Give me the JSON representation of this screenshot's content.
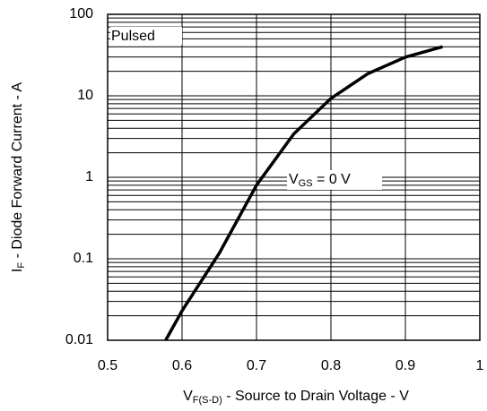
{
  "chart_data": {
    "type": "line",
    "ylabel": [
      "I",
      "F",
      " - Diode Forward Current - A"
    ],
    "xlabel": [
      "V",
      "F(S-D)",
      " - Source to Drain Voltage - V"
    ],
    "annotations": [
      [
        "Pulsed"
      ],
      [
        "V",
        "GS",
        " = 0 V"
      ]
    ],
    "x": [
      0.578,
      0.6,
      0.65,
      0.7,
      0.75,
      0.8,
      0.85,
      0.9,
      0.95
    ],
    "values": [
      0.01,
      0.023,
      0.117,
      0.8,
      3.4,
      9.3,
      18.8,
      29.8,
      40
    ],
    "color": "#000000",
    "xlim": [
      0.5,
      1
    ],
    "xticks": [
      0.5,
      0.6,
      0.7,
      0.8,
      0.9,
      1
    ],
    "ylim": [
      0.01,
      100
    ],
    "yticks": [
      0.01,
      0.1,
      1,
      10,
      100
    ],
    "ylog": true,
    "grid": true,
    "minor_grid": true
  }
}
